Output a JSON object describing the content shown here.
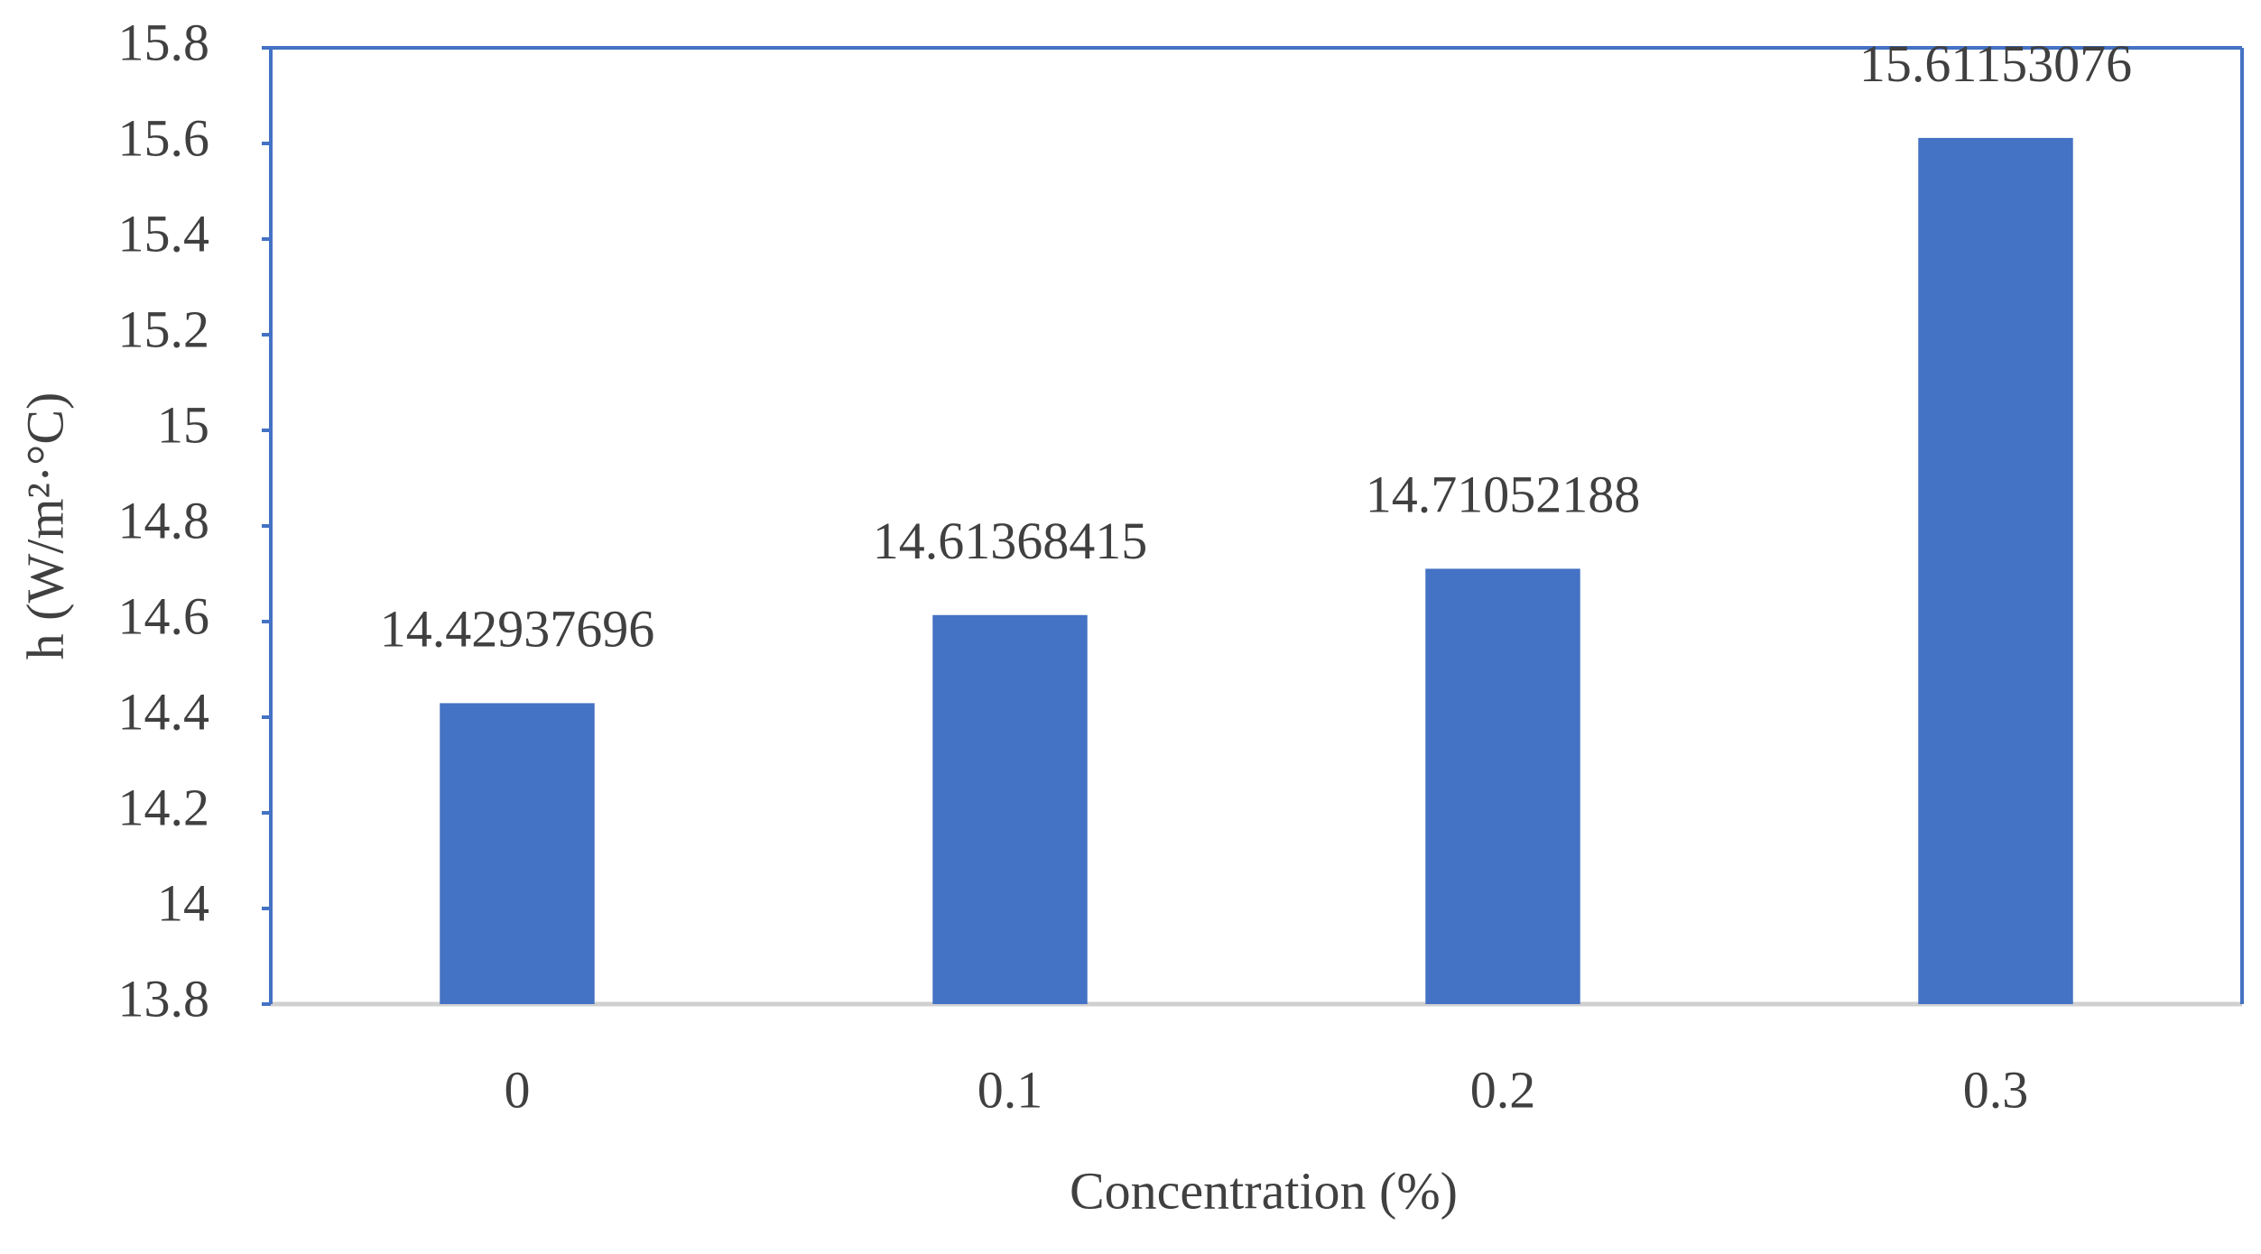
{
  "chart_data": {
    "type": "bar",
    "categories": [
      "0",
      "0.1",
      "0.2",
      "0.3"
    ],
    "values": [
      14.42937696,
      14.61368415,
      14.71052188,
      15.61153076
    ],
    "color": "#4472c4",
    "ylim": [
      13.8,
      15.8
    ],
    "yticks": [
      13.8,
      14,
      14.2,
      14.4,
      14.6,
      14.8,
      15,
      15.2,
      15.4,
      15.6,
      15.8
    ],
    "grid": false,
    "x_label": "Concentration (%)",
    "y_label": "h (W/m²·°C)"
  }
}
